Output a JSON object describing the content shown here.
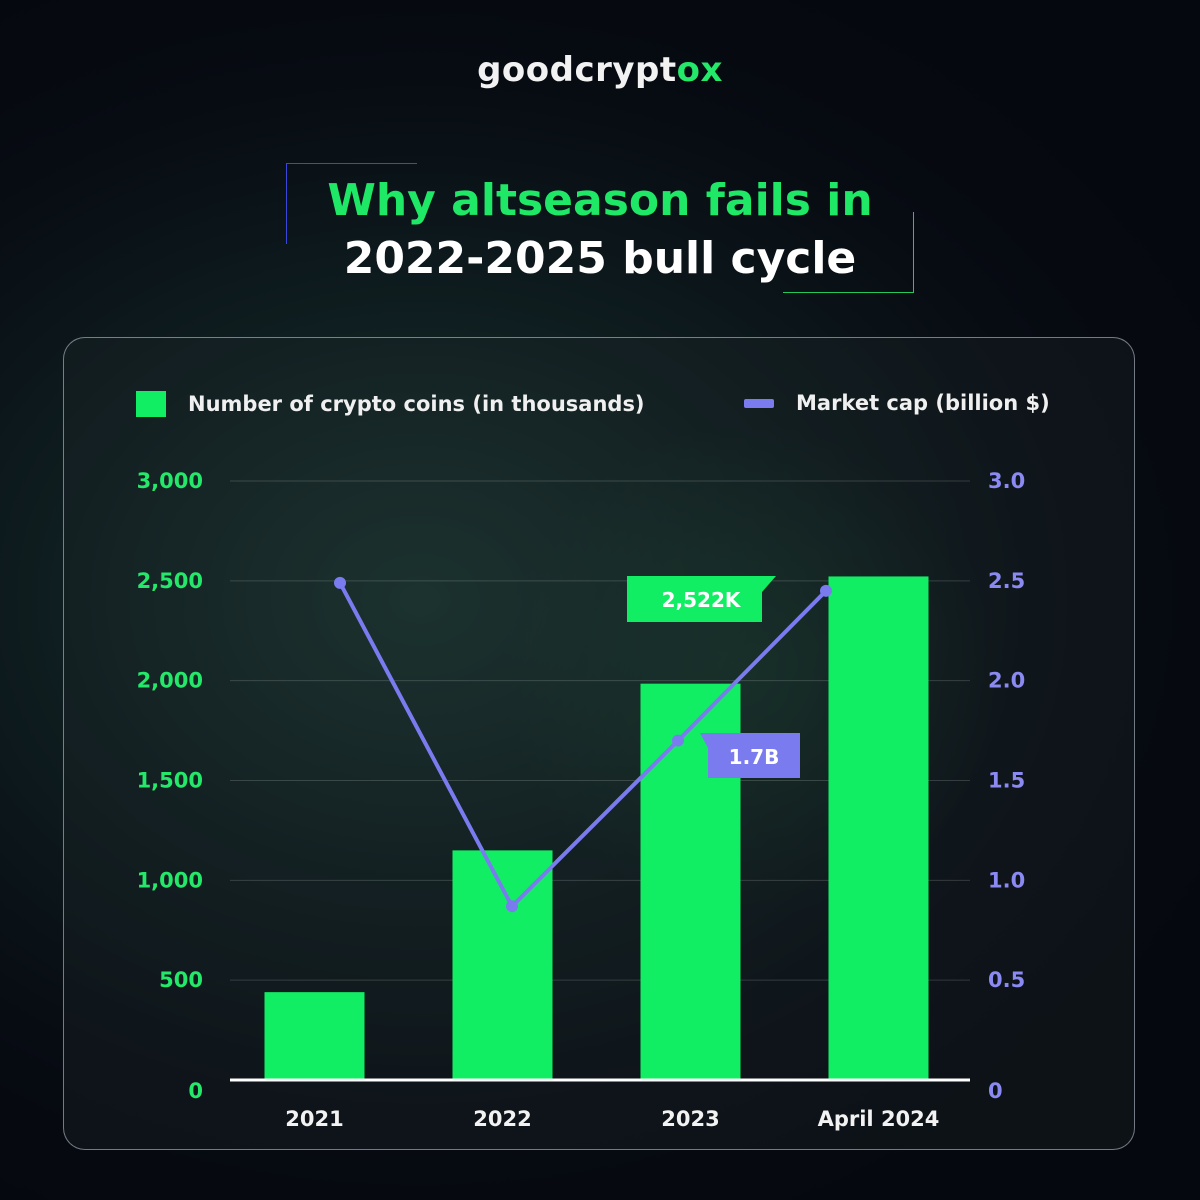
{
  "logo": {
    "text_main": "goodcrypt",
    "text_accent": "ox"
  },
  "title": {
    "line1": "Why altseason fails in",
    "line2": "2022-2025 bull cycle"
  },
  "colors": {
    "bar": "#12ee63",
    "line": "#7b7bf0",
    "left_axis": "#23e86a",
    "right_axis": "#8a8af2"
  },
  "chart_data": {
    "type": "bar",
    "categories": [
      "2021",
      "2022",
      "2023",
      "April 2024"
    ],
    "series": [
      {
        "name": "Number of crypto coins (in thousands)",
        "type": "bar",
        "axis": "left",
        "values": [
          440,
          1150,
          1985,
          2522
        ]
      },
      {
        "name": "Market cap (billion $)",
        "type": "line",
        "axis": "right",
        "values": [
          2.49,
          0.87,
          1.7,
          2.45
        ]
      }
    ],
    "left_axis": {
      "ylim": [
        0,
        3000
      ],
      "ticks": [
        "0",
        "500",
        "1,000",
        "1,500",
        "2,000",
        "2,500",
        "3,000"
      ]
    },
    "right_axis": {
      "ylim": [
        0,
        3.0
      ],
      "ticks": [
        "0",
        "0.5",
        "1.0",
        "1.5",
        "2.0",
        "2.5",
        "3.0"
      ]
    },
    "annotations": [
      {
        "text": "2,522K",
        "series": 0,
        "index": 3
      },
      {
        "text": "1.7B",
        "series": 1,
        "index": 2
      }
    ],
    "grid": true,
    "legend": "top"
  }
}
